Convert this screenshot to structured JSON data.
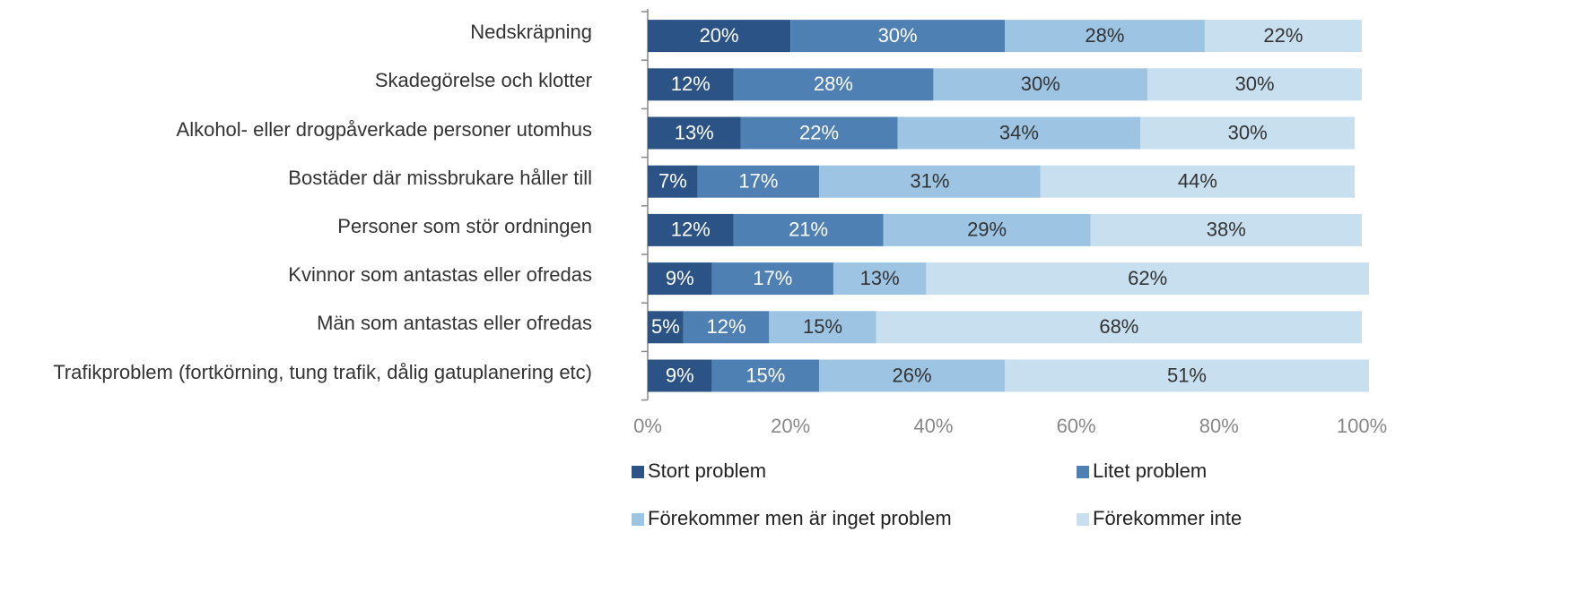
{
  "chart_data": {
    "type": "stacked_barh",
    "categories": [
      "Nedskräpning",
      "Skadegörelse och klotter",
      "Alkohol- eller drogpåverkade personer utomhus",
      "Bostäder där missbrukare håller till",
      "Personer som stör ordningen",
      "Kvinnor som antastas eller ofredas",
      "Män som antastas eller ofredas",
      "Trafikproblem (fortkörning, tung trafik, dålig gatuplanering etc)"
    ],
    "series": [
      {
        "name": "Stort problem",
        "color": "#2b5386",
        "values": [
          20,
          12,
          13,
          7,
          12,
          9,
          5,
          9
        ],
        "value_labels": [
          "20%",
          "12%",
          "13%",
          "7%",
          "12%",
          "9%",
          "5%",
          "9%"
        ]
      },
      {
        "name": "Litet problem",
        "color": "#4f80b3",
        "values": [
          30,
          28,
          22,
          17,
          21,
          17,
          12,
          15
        ],
        "value_labels": [
          "30%",
          "28%",
          "22%",
          "17%",
          "21%",
          "17%",
          "12%",
          "15%"
        ]
      },
      {
        "name": "Förekommer men är inget problem",
        "color": "#9dc4e3",
        "values": [
          28,
          30,
          34,
          31,
          29,
          13,
          15,
          26
        ],
        "value_labels": [
          "28%",
          "30%",
          "34%",
          "31%",
          "29%",
          "13%",
          "15%",
          "26%"
        ]
      },
      {
        "name": "Förekommer inte",
        "color": "#c7dfef",
        "values": [
          22,
          30,
          30,
          44,
          38,
          62,
          68,
          51
        ],
        "value_labels": [
          "22%",
          "30%",
          "30%",
          "44%",
          "38%",
          "62%",
          "68%",
          "51%"
        ]
      }
    ],
    "xlim": [
      0,
      100
    ],
    "xticks": [
      {
        "value": 0,
        "label": "0%"
      },
      {
        "value": 20,
        "label": "20%"
      },
      {
        "value": 40,
        "label": "40%"
      },
      {
        "value": 60,
        "label": "60%"
      },
      {
        "value": 80,
        "label": "80%"
      },
      {
        "value": 100,
        "label": "100%"
      }
    ]
  }
}
